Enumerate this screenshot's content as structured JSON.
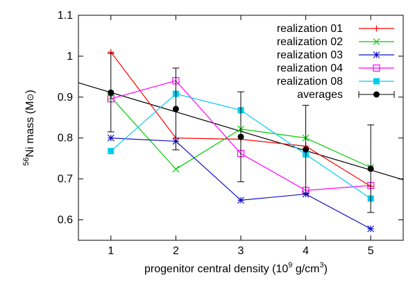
{
  "chart_data": {
    "type": "line",
    "xlabel": "progenitor central density (10",
    "xlabel_exp": "9",
    "xlabel_mid": " g/cm",
    "xlabel_exp2": "3",
    "xlabel_end": ")",
    "ylabel_sup": "56",
    "ylabel_main": "Ni mass (M",
    "ylabel_sun": "⊙",
    "ylabel_end": ")",
    "xlim": [
      0.5,
      5.5
    ],
    "ylim": [
      0.55,
      1.1
    ],
    "xticks": [
      1,
      2,
      3,
      4,
      5
    ],
    "yticks": [
      0.6,
      0.7,
      0.8,
      0.9,
      1.0,
      1.1
    ],
    "ytick_labels": [
      "0.6",
      "0.7",
      "0.8",
      "0.9",
      "1",
      "1.1"
    ],
    "grid": false,
    "legend_position": "top-right",
    "series": [
      {
        "name": "realization 01",
        "color": "#ff0000",
        "marker": "plus",
        "x": [
          1,
          2,
          3,
          4,
          5
        ],
        "y": [
          1.01,
          0.8,
          0.797,
          0.78,
          0.682
        ]
      },
      {
        "name": "realization 02",
        "color": "#00cc00",
        "marker": "cross",
        "x": [
          1,
          2,
          3,
          4,
          5
        ],
        "y": [
          0.9,
          0.724,
          0.822,
          0.8,
          0.728
        ]
      },
      {
        "name": "realization 03",
        "color": "#1010c0",
        "marker": "star",
        "x": [
          1,
          2,
          3,
          4,
          5
        ],
        "y": [
          0.8,
          0.792,
          0.648,
          0.663,
          0.578
        ]
      },
      {
        "name": "realization 04",
        "color": "#ff00ff",
        "marker": "open-square",
        "x": [
          1,
          2,
          3,
          4,
          5
        ],
        "y": [
          0.896,
          0.94,
          0.762,
          0.672,
          0.684
        ]
      },
      {
        "name": "realization 08",
        "color": "#00ccee",
        "marker": "filled-square",
        "x": [
          1,
          2,
          3,
          4,
          5
        ],
        "y": [
          0.768,
          0.908,
          0.868,
          0.76,
          0.652
        ]
      }
    ],
    "averages": {
      "name": "averages",
      "color": "#000000",
      "marker": "filled-circle",
      "x": [
        1,
        2,
        3,
        4,
        5
      ],
      "y": [
        0.911,
        0.871,
        0.803,
        0.772,
        0.725
      ],
      "yerr": [
        0.096,
        0.1,
        0.11,
        0.108,
        0.107
      ]
    },
    "fit_line": {
      "color": "#000000",
      "x": [
        0.5,
        5.5
      ],
      "y": [
        0.935,
        0.698
      ]
    }
  }
}
